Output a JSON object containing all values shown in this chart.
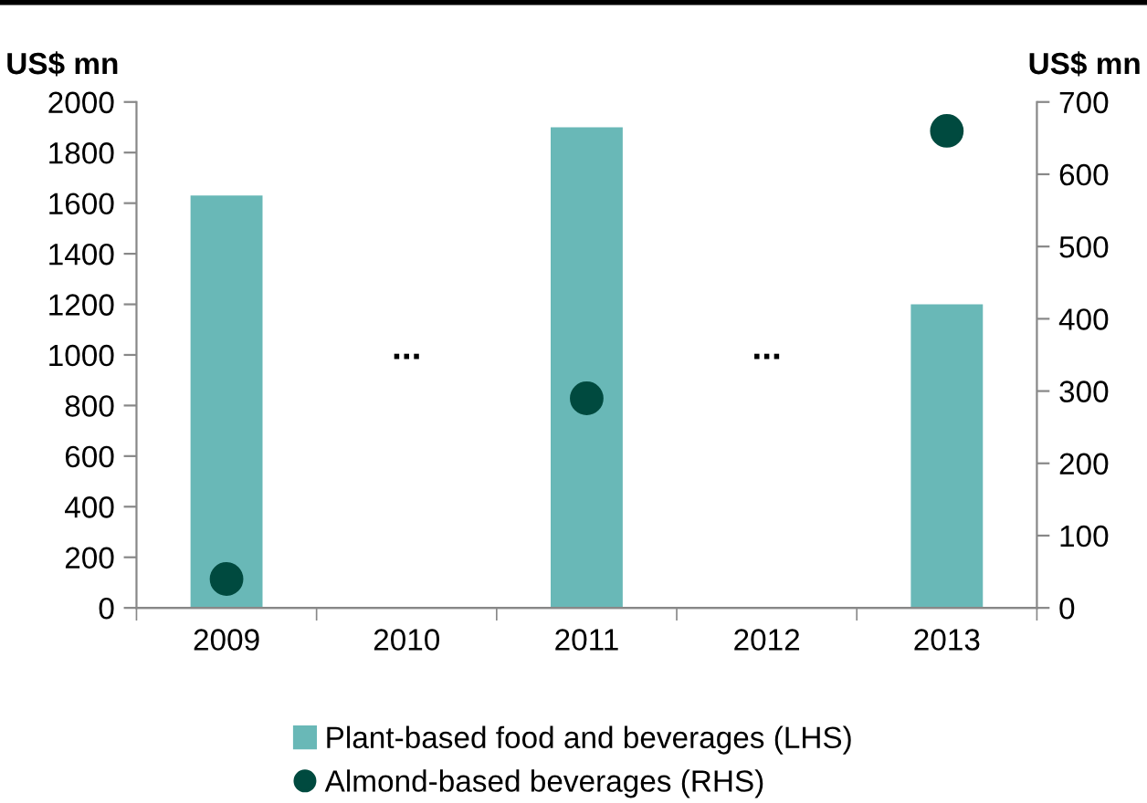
{
  "chart_data": {
    "type": "bar",
    "categories": [
      "2009",
      "2010",
      "2011",
      "2012",
      "2013"
    ],
    "ylabel": "US$ mn",
    "y2label": "US$ mn",
    "series": [
      {
        "name": "Plant-based food and beverages (LHS)",
        "color": "#69b8b7",
        "values": [
          1630,
          null,
          1900,
          null,
          1200
        ]
      },
      {
        "name": "Almond-based beverages (RHS)",
        "type": "scatter",
        "axis": "y2",
        "color": "#004a3f",
        "marker": "circle",
        "values": [
          40,
          null,
          290,
          null,
          660
        ]
      }
    ],
    "annotations": [
      "...",
      "..."
    ],
    "ylim": [
      0,
      2000
    ],
    "yticks": [
      0,
      200,
      400,
      600,
      800,
      1000,
      1200,
      1400,
      1600,
      1800,
      2000
    ],
    "y2lim": [
      0,
      700
    ],
    "y2ticks": [
      0,
      100,
      200,
      300,
      400,
      500,
      600,
      700
    ],
    "grid": false,
    "legend": "bottom"
  }
}
